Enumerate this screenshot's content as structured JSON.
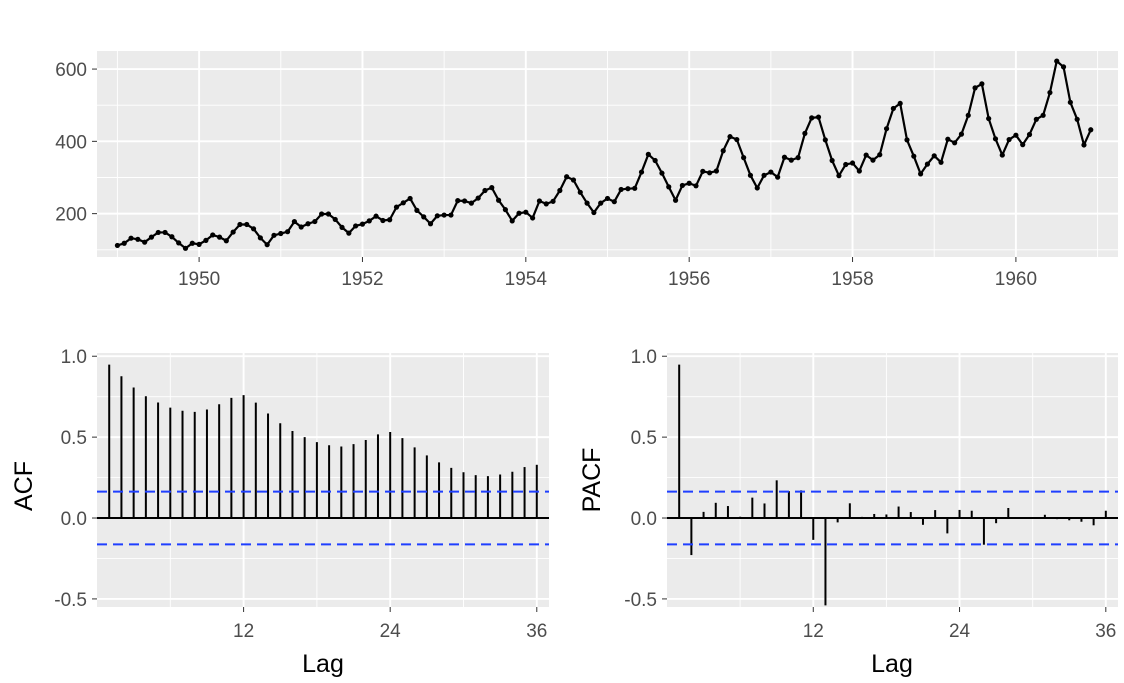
{
  "chart_data": [
    {
      "type": "line",
      "title": "",
      "xlabel": "",
      "ylabel": "",
      "xlim": [
        1948.75,
        1961.25
      ],
      "ylim": [
        80,
        650
      ],
      "x_ticks": [
        1950,
        1952,
        1954,
        1956,
        1958,
        1960
      ],
      "x_tick_labels": [
        "1950",
        "1952",
        "1954",
        "1956",
        "1958",
        "1960"
      ],
      "y_ticks": [
        200,
        400,
        600
      ],
      "y_tick_labels": [
        "200",
        "400",
        "600"
      ],
      "grid": true,
      "start": "1949-01",
      "frequency": "monthly",
      "x": [
        "1949-01",
        "1949-02",
        "1949-03",
        "1949-04",
        "1949-05",
        "1949-06",
        "1949-07",
        "1949-08",
        "1949-09",
        "1949-10",
        "1949-11",
        "1949-12",
        "1950-01",
        "1950-02",
        "1950-03",
        "1950-04",
        "1950-05",
        "1950-06",
        "1950-07",
        "1950-08",
        "1950-09",
        "1950-10",
        "1950-11",
        "1950-12",
        "1951-01",
        "1951-02",
        "1951-03",
        "1951-04",
        "1951-05",
        "1951-06",
        "1951-07",
        "1951-08",
        "1951-09",
        "1951-10",
        "1951-11",
        "1951-12",
        "1952-01",
        "1952-02",
        "1952-03",
        "1952-04",
        "1952-05",
        "1952-06",
        "1952-07",
        "1952-08",
        "1952-09",
        "1952-10",
        "1952-11",
        "1952-12",
        "1953-01",
        "1953-02",
        "1953-03",
        "1953-04",
        "1953-05",
        "1953-06",
        "1953-07",
        "1953-08",
        "1953-09",
        "1953-10",
        "1953-11",
        "1953-12",
        "1954-01",
        "1954-02",
        "1954-03",
        "1954-04",
        "1954-05",
        "1954-06",
        "1954-07",
        "1954-08",
        "1954-09",
        "1954-10",
        "1954-11",
        "1954-12",
        "1955-01",
        "1955-02",
        "1955-03",
        "1955-04",
        "1955-05",
        "1955-06",
        "1955-07",
        "1955-08",
        "1955-09",
        "1955-10",
        "1955-11",
        "1955-12",
        "1956-01",
        "1956-02",
        "1956-03",
        "1956-04",
        "1956-05",
        "1956-06",
        "1956-07",
        "1956-08",
        "1956-09",
        "1956-10",
        "1956-11",
        "1956-12",
        "1957-01",
        "1957-02",
        "1957-03",
        "1957-04",
        "1957-05",
        "1957-06",
        "1957-07",
        "1957-08",
        "1957-09",
        "1957-10",
        "1957-11",
        "1957-12",
        "1958-01",
        "1958-02",
        "1958-03",
        "1958-04",
        "1958-05",
        "1958-06",
        "1958-07",
        "1958-08",
        "1958-09",
        "1958-10",
        "1958-11",
        "1958-12",
        "1959-01",
        "1959-02",
        "1959-03",
        "1959-04",
        "1959-05",
        "1959-06",
        "1959-07",
        "1959-08",
        "1959-09",
        "1959-10",
        "1959-11",
        "1959-12",
        "1960-01",
        "1960-02",
        "1960-03",
        "1960-04",
        "1960-05",
        "1960-06",
        "1960-07",
        "1960-08",
        "1960-09",
        "1960-10",
        "1960-11",
        "1960-12"
      ],
      "values": [
        112,
        118,
        132,
        129,
        121,
        135,
        148,
        148,
        136,
        119,
        104,
        118,
        115,
        126,
        141,
        135,
        125,
        149,
        170,
        170,
        158,
        133,
        114,
        140,
        145,
        150,
        178,
        163,
        172,
        178,
        199,
        199,
        184,
        162,
        146,
        166,
        171,
        180,
        193,
        181,
        183,
        218,
        230,
        242,
        209,
        191,
        172,
        194,
        196,
        196,
        236,
        235,
        229,
        243,
        264,
        272,
        237,
        211,
        180,
        201,
        204,
        188,
        235,
        227,
        234,
        264,
        302,
        293,
        259,
        229,
        203,
        229,
        242,
        233,
        267,
        269,
        270,
        315,
        364,
        347,
        312,
        274,
        237,
        278,
        284,
        277,
        317,
        313,
        318,
        374,
        413,
        405,
        355,
        306,
        271,
        306,
        315,
        301,
        356,
        348,
        355,
        422,
        465,
        467,
        404,
        347,
        305,
        336,
        340,
        318,
        362,
        348,
        363,
        435,
        491,
        505,
        404,
        359,
        310,
        337,
        360,
        342,
        406,
        396,
        420,
        472,
        548,
        559,
        463,
        407,
        362,
        405,
        417,
        391,
        419,
        461,
        472,
        535,
        622,
        606,
        508,
        461,
        390,
        432
      ]
    },
    {
      "type": "bar",
      "xlabel": "Lag",
      "ylabel": "ACF",
      "xlim": [
        0,
        37
      ],
      "ylim": [
        -0.55,
        1.02
      ],
      "x_ticks": [
        12,
        24,
        36
      ],
      "x_tick_labels": [
        "12",
        "24",
        "36"
      ],
      "y_ticks": [
        -0.5,
        0.0,
        0.5,
        1.0
      ],
      "y_tick_labels": [
        "-0.5",
        "0.0",
        "0.5",
        "1.0"
      ],
      "confidence_limit": 0.163,
      "confidence_color": "#1f3fff",
      "lags": [
        1,
        2,
        3,
        4,
        5,
        6,
        7,
        8,
        9,
        10,
        11,
        12,
        13,
        14,
        15,
        16,
        17,
        18,
        19,
        20,
        21,
        22,
        23,
        24,
        25,
        26,
        27,
        28,
        29,
        30,
        31,
        32,
        33,
        34,
        35,
        36
      ],
      "values": [
        0.948,
        0.876,
        0.807,
        0.753,
        0.714,
        0.682,
        0.663,
        0.656,
        0.671,
        0.703,
        0.743,
        0.76,
        0.713,
        0.646,
        0.586,
        0.538,
        0.5,
        0.469,
        0.45,
        0.442,
        0.457,
        0.482,
        0.517,
        0.532,
        0.494,
        0.437,
        0.387,
        0.344,
        0.31,
        0.283,
        0.265,
        0.259,
        0.269,
        0.286,
        0.315,
        0.329
      ]
    },
    {
      "type": "bar",
      "xlabel": "Lag",
      "ylabel": "PACF",
      "xlim": [
        0,
        37
      ],
      "ylim": [
        -0.55,
        1.02
      ],
      "x_ticks": [
        12,
        24,
        36
      ],
      "x_tick_labels": [
        "12",
        "24",
        "36"
      ],
      "y_ticks": [
        -0.5,
        0.0,
        0.5,
        1.0
      ],
      "y_tick_labels": [
        "-0.5",
        "0.0",
        "0.5",
        "1.0"
      ],
      "confidence_limit": 0.163,
      "confidence_color": "#1f3fff",
      "lags": [
        1,
        2,
        3,
        4,
        5,
        6,
        7,
        8,
        9,
        10,
        11,
        12,
        13,
        14,
        15,
        16,
        17,
        18,
        19,
        20,
        21,
        22,
        23,
        24,
        25,
        26,
        27,
        28,
        29,
        30,
        31,
        32,
        33,
        34,
        35,
        36
      ],
      "values": [
        0.948,
        -0.229,
        0.038,
        0.094,
        0.074,
        0.008,
        0.126,
        0.09,
        0.233,
        0.166,
        0.171,
        -0.135,
        -0.54,
        -0.027,
        0.091,
        0.007,
        0.025,
        0.022,
        0.071,
        0.037,
        -0.042,
        0.049,
        -0.095,
        0.05,
        0.045,
        -0.165,
        -0.032,
        0.062,
        -0.003,
        0.003,
        0.02,
        -0.007,
        -0.014,
        -0.023,
        -0.045,
        0.045
      ]
    }
  ]
}
